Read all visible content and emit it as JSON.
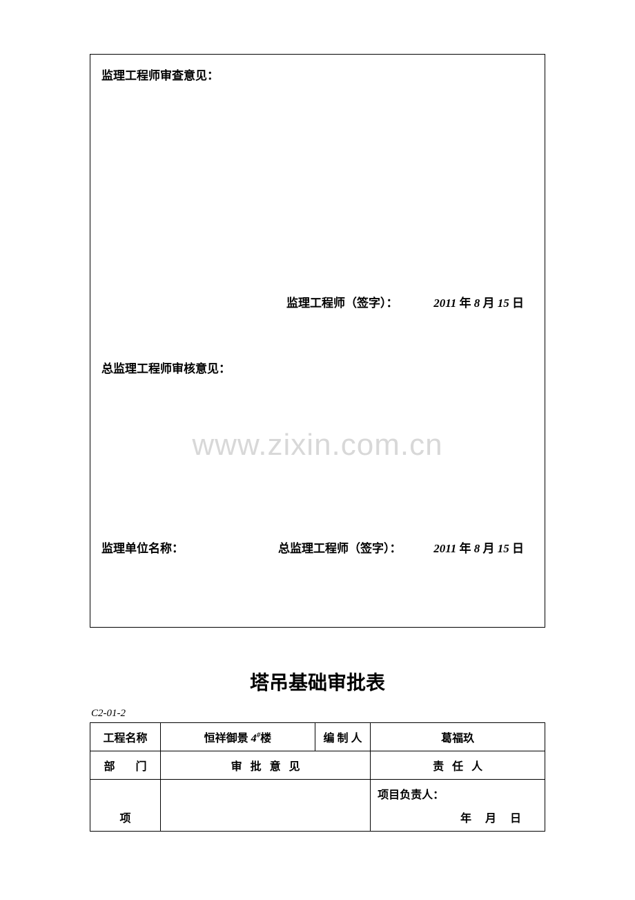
{
  "colors": {
    "text": "#000000",
    "background": "#ffffff",
    "watermark": "#d8d8d8",
    "border": "#000000"
  },
  "typography": {
    "body_font": "SimSun",
    "heading_font": "SimHei",
    "body_fontsize": 17,
    "title_fontsize": 28,
    "code_fontsize": 15,
    "table_fontsize": 16
  },
  "box1": {
    "section1_title": "监理工程师审查意见：",
    "sig1_label": "监理工程师（签字）：",
    "sig1_date_year": "2011",
    "sig1_date_month": "8",
    "sig1_date_day": "15",
    "section2_title": "总监理工程师审核意见：",
    "watermark": "www.zixin.com.cn",
    "unit_label": "监理单位名称：",
    "sig2_label": "总监理工程师（签字）：",
    "sig2_date_year": "2011",
    "sig2_date_month": "8",
    "sig2_date_day": "15"
  },
  "title": "塔吊基础审批表",
  "form_code": "C2-01-2",
  "table": {
    "columns": [
      "工程名称",
      "恒祥御景 4#楼",
      "编 制 人",
      "葛福玖"
    ],
    "row2": [
      "部　门",
      "审　批　意　见",
      "责　任　人"
    ],
    "row3_left": "项",
    "row3_right_label": "项目负责人：",
    "row3_date": "年　月　日",
    "project_name_prefix": "恒祥御景 ",
    "project_name_num": "4",
    "project_name_sup": "#",
    "project_name_suffix": "楼"
  }
}
